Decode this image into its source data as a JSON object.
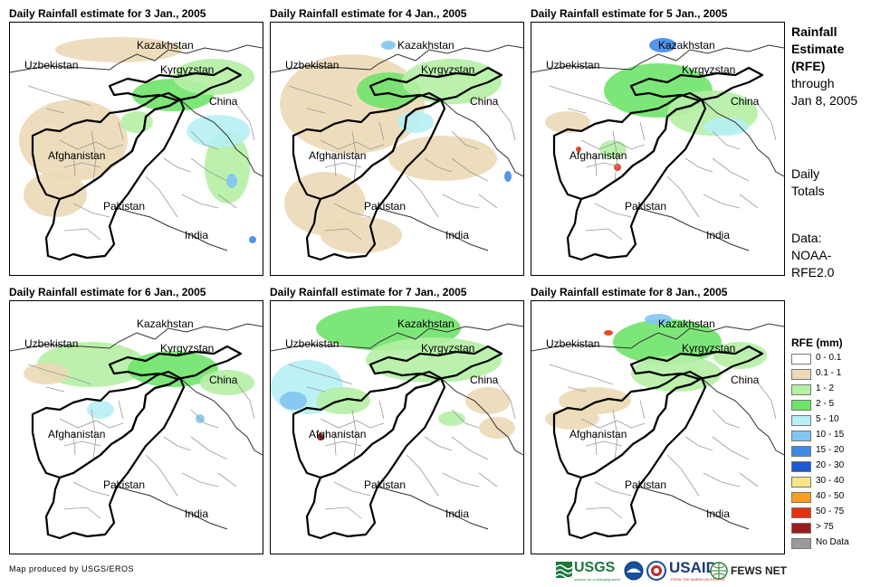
{
  "panels": [
    {
      "title": "Daily Rainfall estimate for 3 Jan., 2005",
      "rain": [
        {
          "kind": "tan",
          "cx": 70,
          "cy": 130,
          "rx": 60,
          "ry": 45
        },
        {
          "kind": "tan",
          "cx": 50,
          "cy": 190,
          "rx": 35,
          "ry": 25
        },
        {
          "kind": "tan",
          "cx": 120,
          "cy": 30,
          "rx": 70,
          "ry": 14
        },
        {
          "kind": "g2",
          "cx": 180,
          "cy": 80,
          "rx": 45,
          "ry": 18
        },
        {
          "kind": "g1",
          "cx": 225,
          "cy": 60,
          "rx": 45,
          "ry": 20
        },
        {
          "kind": "g1",
          "cx": 240,
          "cy": 160,
          "rx": 25,
          "ry": 40
        },
        {
          "kind": "cy",
          "cx": 230,
          "cy": 120,
          "rx": 35,
          "ry": 18
        },
        {
          "kind": "b1",
          "cx": 245,
          "cy": 175,
          "rx": 6,
          "ry": 8
        },
        {
          "kind": "b2",
          "cx": 268,
          "cy": 240,
          "rx": 4,
          "ry": 4
        },
        {
          "kind": "g1",
          "cx": 140,
          "cy": 110,
          "rx": 18,
          "ry": 12
        }
      ]
    },
    {
      "title": "Daily Rainfall estimate for 4 Jan., 2005",
      "rain": [
        {
          "kind": "tan",
          "cx": 90,
          "cy": 90,
          "rx": 80,
          "ry": 55
        },
        {
          "kind": "tan",
          "cx": 60,
          "cy": 200,
          "rx": 45,
          "ry": 35
        },
        {
          "kind": "tan",
          "cx": 190,
          "cy": 150,
          "rx": 60,
          "ry": 25
        },
        {
          "kind": "tan",
          "cx": 100,
          "cy": 235,
          "rx": 45,
          "ry": 20
        },
        {
          "kind": "g2",
          "cx": 130,
          "cy": 75,
          "rx": 35,
          "ry": 20
        },
        {
          "kind": "g1",
          "cx": 200,
          "cy": 65,
          "rx": 55,
          "ry": 25
        },
        {
          "kind": "cy",
          "cx": 160,
          "cy": 110,
          "rx": 20,
          "ry": 12
        },
        {
          "kind": "b1",
          "cx": 130,
          "cy": 25,
          "rx": 8,
          "ry": 5
        },
        {
          "kind": "b2",
          "cx": 262,
          "cy": 170,
          "rx": 4,
          "ry": 6
        }
      ]
    },
    {
      "title": "Daily Rainfall estimate for 5 Jan., 2005",
      "rain": [
        {
          "kind": "g2",
          "cx": 140,
          "cy": 75,
          "rx": 60,
          "ry": 30
        },
        {
          "kind": "g1",
          "cx": 200,
          "cy": 100,
          "rx": 50,
          "ry": 25
        },
        {
          "kind": "b2",
          "cx": 145,
          "cy": 25,
          "rx": 15,
          "ry": 8
        },
        {
          "kind": "cy",
          "cx": 215,
          "cy": 115,
          "rx": 25,
          "ry": 10
        },
        {
          "kind": "tan",
          "cx": 40,
          "cy": 110,
          "rx": 25,
          "ry": 12
        },
        {
          "kind": "r1",
          "cx": 95,
          "cy": 160,
          "rx": 4,
          "ry": 4
        },
        {
          "kind": "r1",
          "cx": 52,
          "cy": 140,
          "rx": 3,
          "ry": 3
        },
        {
          "kind": "g1",
          "cx": 90,
          "cy": 140,
          "rx": 15,
          "ry": 10
        }
      ]
    },
    {
      "title": "Daily Rainfall estimate for 6 Jan., 2005",
      "rain": [
        {
          "kind": "g1",
          "cx": 90,
          "cy": 70,
          "rx": 60,
          "ry": 25
        },
        {
          "kind": "g2",
          "cx": 180,
          "cy": 75,
          "rx": 50,
          "ry": 20
        },
        {
          "kind": "g1",
          "cx": 240,
          "cy": 90,
          "rx": 30,
          "ry": 14
        },
        {
          "kind": "tan",
          "cx": 40,
          "cy": 80,
          "rx": 25,
          "ry": 12
        },
        {
          "kind": "cy",
          "cx": 100,
          "cy": 120,
          "rx": 15,
          "ry": 10
        },
        {
          "kind": "b1",
          "cx": 210,
          "cy": 130,
          "rx": 5,
          "ry": 5
        }
      ]
    },
    {
      "title": "Daily Rainfall estimate for 7 Jan., 2005",
      "rain": [
        {
          "kind": "cy",
          "cx": 40,
          "cy": 95,
          "rx": 40,
          "ry": 30
        },
        {
          "kind": "b1",
          "cx": 25,
          "cy": 110,
          "rx": 15,
          "ry": 10
        },
        {
          "kind": "g2",
          "cx": 130,
          "cy": 30,
          "rx": 80,
          "ry": 25
        },
        {
          "kind": "g1",
          "cx": 180,
          "cy": 65,
          "rx": 75,
          "ry": 25
        },
        {
          "kind": "tan",
          "cx": 240,
          "cy": 110,
          "rx": 25,
          "ry": 15
        },
        {
          "kind": "tan",
          "cx": 250,
          "cy": 140,
          "rx": 20,
          "ry": 12
        },
        {
          "kind": "g1",
          "cx": 80,
          "cy": 110,
          "rx": 30,
          "ry": 15
        },
        {
          "kind": "r2",
          "cx": 55,
          "cy": 150,
          "rx": 4,
          "ry": 4
        },
        {
          "kind": "g1",
          "cx": 200,
          "cy": 130,
          "rx": 15,
          "ry": 8
        }
      ]
    },
    {
      "title": "Daily Rainfall estimate for 8 Jan., 2005",
      "rain": [
        {
          "kind": "g2",
          "cx": 150,
          "cy": 45,
          "rx": 60,
          "ry": 25
        },
        {
          "kind": "g1",
          "cx": 160,
          "cy": 80,
          "rx": 50,
          "ry": 20
        },
        {
          "kind": "b1",
          "cx": 140,
          "cy": 20,
          "rx": 15,
          "ry": 6
        },
        {
          "kind": "tan",
          "cx": 70,
          "cy": 110,
          "rx": 40,
          "ry": 15
        },
        {
          "kind": "tan",
          "cx": 45,
          "cy": 130,
          "rx": 30,
          "ry": 12
        },
        {
          "kind": "r1",
          "cx": 85,
          "cy": 35,
          "rx": 5,
          "ry": 3
        },
        {
          "kind": "g1",
          "cx": 230,
          "cy": 60,
          "rx": 30,
          "ry": 15
        }
      ]
    }
  ],
  "map_labels": {
    "kazakhstan": "Kazakhstan",
    "uzbekistan": "Uzbekistan",
    "kyrgyzstan": "Kyrgyzstan",
    "china": "China",
    "afghanistan": "Afghanistan",
    "pakistan": "Pakistan",
    "india": "India"
  },
  "sidebar": {
    "title_lines": [
      "Rainfall",
      "Estimate",
      "(RFE)"
    ],
    "through_lines": [
      "through",
      "Jan 8, 2005"
    ],
    "daily_lines": [
      "Daily",
      "Totals"
    ],
    "data_lines": [
      "Data:",
      "NOAA-",
      "RFE2.0"
    ]
  },
  "legend": {
    "title": "RFE (mm)",
    "items": [
      {
        "label": "0 - 0.1",
        "color": "#ffffff"
      },
      {
        "label": "0.1 - 1",
        "color": "#ecd9b6"
      },
      {
        "label": "1 - 2",
        "color": "#b4f0a4"
      },
      {
        "label": "2 - 5",
        "color": "#6fe36a"
      },
      {
        "label": "5 - 10",
        "color": "#b6f0f4"
      },
      {
        "label": "10 - 15",
        "color": "#82c4f2"
      },
      {
        "label": "15 - 20",
        "color": "#3f8ae8"
      },
      {
        "label": "20 - 30",
        "color": "#1c59d4"
      },
      {
        "label": "30 - 40",
        "color": "#fce488"
      },
      {
        "label": "40 - 50",
        "color": "#f7a11f"
      },
      {
        "label": "50 - 75",
        "color": "#e6320e"
      },
      {
        "label": "> 75",
        "color": "#9b1c1c"
      },
      {
        "label": "No Data",
        "color": "#9a9a9a"
      }
    ]
  },
  "colors": {
    "tan": "#ecd9b6",
    "g1": "#b4f0a4",
    "g2": "#6fe36a",
    "cy": "#b6f0f4",
    "b1": "#82c4f2",
    "b2": "#3f8ae8",
    "r1": "#e6320e",
    "r2": "#9b1c1c"
  },
  "footer": "Map produced by USGS/EROS",
  "logos": {
    "usgs": "USGS",
    "usgs_tag": "science for a changing world",
    "usaid": "USAID",
    "usaid_tag": "FROM THE AMERICAN PEOPLE",
    "fews": "FEWS NET"
  }
}
